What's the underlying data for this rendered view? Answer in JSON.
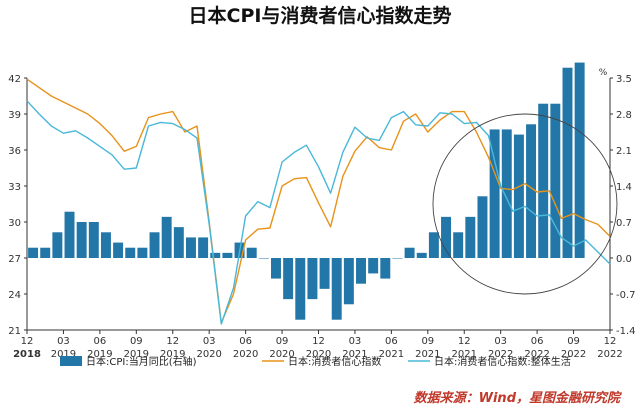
{
  "chart_data": {
    "type": "bar+line",
    "title": "日本CPI与消费者信心指数走势",
    "unit_right": "%",
    "x_labels": [
      {
        "month": "12",
        "year": "2018"
      },
      {
        "month": "03",
        "year": "2019"
      },
      {
        "month": "06",
        "year": "2019"
      },
      {
        "month": "09",
        "year": "2019"
      },
      {
        "month": "12",
        "year": "2019"
      },
      {
        "month": "03",
        "year": "2020"
      },
      {
        "month": "06",
        "year": "2020"
      },
      {
        "month": "09",
        "year": "2020"
      },
      {
        "month": "12",
        "year": "2020"
      },
      {
        "month": "03",
        "year": "2021"
      },
      {
        "month": "06",
        "year": "2021"
      },
      {
        "month": "09",
        "year": "2021"
      },
      {
        "month": "12",
        "year": "2021"
      },
      {
        "month": "03",
        "year": "2022"
      },
      {
        "month": "06",
        "year": "2022"
      },
      {
        "month": "09",
        "year": "2022"
      },
      {
        "month": "12",
        "year": "2022"
      }
    ],
    "y_left": {
      "min": 21,
      "max": 42,
      "ticks": [
        "21",
        "24",
        "27",
        "30",
        "33",
        "36",
        "39",
        "42"
      ]
    },
    "y_right": {
      "min": -1.4,
      "max": 3.5,
      "ticks": [
        "-1.4",
        "-0.7",
        "0.0",
        "0.7",
        "1.4",
        "2.1",
        "2.8",
        "3.5"
      ]
    },
    "series": [
      {
        "name": "日本:CPI:当月同比(右轴)",
        "type": "bar",
        "axis": "right",
        "color": "#2377a8",
        "values": [
          0.2,
          0.2,
          0.5,
          0.9,
          0.7,
          0.7,
          0.5,
          0.3,
          0.2,
          0.2,
          0.5,
          0.8,
          0.6,
          0.4,
          0.4,
          0.1,
          0.1,
          0.3,
          0.2,
          0.0,
          -0.4,
          -0.8,
          -1.2,
          -0.8,
          -0.6,
          -1.2,
          -0.9,
          -0.5,
          -0.3,
          -0.4,
          0.0,
          0.2,
          0.1,
          0.5,
          0.8,
          0.5,
          0.8,
          1.2,
          2.5,
          2.5,
          2.4,
          2.6,
          3.0,
          3.0,
          3.7,
          3.8
        ]
      },
      {
        "name": "日本:消费者信心指数",
        "type": "line",
        "axis": "left",
        "color": "#e8921a",
        "values": [
          41.9,
          41.2,
          40.5,
          40.0,
          39.5,
          39.0,
          38.2,
          37.2,
          35.9,
          36.3,
          38.7,
          39.0,
          39.2,
          37.5,
          38.0,
          30.0,
          21.6,
          24.0,
          28.5,
          29.4,
          29.5,
          33.0,
          33.6,
          33.7,
          31.6,
          29.6,
          33.8,
          35.9,
          37.1,
          36.2,
          36.0,
          38.4,
          39.0,
          37.5,
          38.5,
          39.2,
          39.2,
          37.5,
          35.4,
          32.8,
          32.7,
          33.2,
          32.5,
          32.6,
          30.3,
          30.7,
          30.2,
          29.8,
          28.8
        ]
      },
      {
        "name": "日本:消费者信心指数:整体生活",
        "type": "line",
        "axis": "left",
        "color": "#49b8d8",
        "values": [
          40.1,
          39.0,
          38.0,
          37.4,
          37.6,
          37.0,
          36.3,
          35.6,
          34.4,
          34.5,
          38.0,
          38.3,
          38.2,
          37.7,
          37.0,
          29.8,
          21.5,
          24.5,
          30.5,
          31.7,
          31.2,
          35.0,
          35.8,
          36.4,
          34.6,
          32.4,
          35.8,
          37.9,
          37.0,
          36.8,
          38.7,
          39.2,
          38.1,
          38.0,
          39.1,
          39.0,
          38.2,
          38.3,
          37.2,
          33.0,
          30.9,
          31.3,
          30.5,
          30.6,
          28.7,
          28.0,
          28.5,
          27.5,
          26.5
        ]
      }
    ],
    "annotations": [
      {
        "type": "circle",
        "center_index": 41,
        "center_left": 31.5,
        "note": ""
      }
    ],
    "grid": false,
    "legend_position": "bottom"
  },
  "source_note": "数据来源：Wind，星图金融研究院",
  "colors": {
    "axis": "#333333",
    "annotation_circle": "#444444",
    "source_text": "#c0392b"
  }
}
